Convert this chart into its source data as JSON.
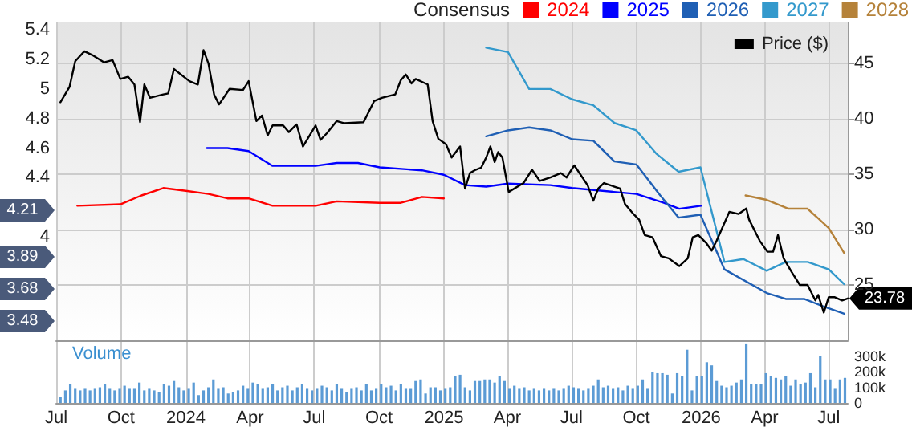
{
  "chart_data": {
    "type": "line",
    "legend_title": "Consensus",
    "legend": "top right",
    "grid": true,
    "marker": "none",
    "line_style": "solid",
    "xlim": [
      "2023-07-01",
      "2026-07-28"
    ],
    "xticks": [
      {
        "value": "2023-07-01",
        "label": "Jul"
      },
      {
        "value": "2023-10-01",
        "label": "Oct"
      },
      {
        "value": "2024-01-01",
        "label": "2024"
      },
      {
        "value": "2024-04-01",
        "label": "Apr"
      },
      {
        "value": "2024-07-01",
        "label": "Jul"
      },
      {
        "value": "2024-10-01",
        "label": "Oct"
      },
      {
        "value": "2025-01-01",
        "label": "2025"
      },
      {
        "value": "2025-04-01",
        "label": "Apr"
      },
      {
        "value": "2025-07-01",
        "label": "Jul"
      },
      {
        "value": "2025-10-01",
        "label": "Oct"
      },
      {
        "value": "2026-01-01",
        "label": "2026"
      },
      {
        "value": "2026-04-01",
        "label": "Apr"
      },
      {
        "value": "2026-07-01",
        "label": "Jul"
      }
    ],
    "ylim": [
      3.3,
      5.45
    ],
    "yticks": [
      4,
      4.4,
      4.6,
      4.8,
      5,
      5.2,
      5.4
    ],
    "y2lim": [
      20,
      48.7
    ],
    "y2ticks": [
      25,
      30,
      35,
      40,
      45
    ],
    "y3lim": [
      0,
      400000
    ],
    "y3ticks": [
      0,
      {
        "value": 100000,
        "label": "100k"
      },
      {
        "value": 200000,
        "label": "200k"
      },
      {
        "value": 300000,
        "label": "300k"
      }
    ],
    "annotations": [
      "Volume",
      "4.21",
      "3.89",
      "3.68",
      "3.48"
    ],
    "series": [
      {
        "name": "2024",
        "color": "#ff0000",
        "x": [
          "2023-07-31",
          "2023-09-30",
          "2023-10-30",
          "2023-11-30",
          "2024-01-03",
          "2024-02-02",
          "2024-02-29",
          "2024-03-30",
          "2024-05-03",
          "2024-07-03",
          "2024-08-02",
          "2024-10-02",
          "2024-11-01",
          "2024-12-01",
          "2025-01-01"
        ],
        "values": [
          4.21,
          4.22,
          4.28,
          4.33,
          4.31,
          4.29,
          4.26,
          4.26,
          4.21,
          4.21,
          4.24,
          4.23,
          4.23,
          4.27,
          4.26
        ]
      },
      {
        "name": "2025",
        "color": "#0000ff",
        "x": [
          "2024-01-31",
          "2024-02-29",
          "2024-03-30",
          "2024-05-03",
          "2024-07-03",
          "2024-08-02",
          "2024-09-01",
          "2024-10-02",
          "2024-12-01",
          "2025-01-01",
          "2025-01-31",
          "2025-03-02",
          "2025-04-02",
          "2025-06-01",
          "2025-07-02",
          "2025-10-01",
          "2025-11-09",
          "2025-12-01",
          "2026-01-01"
        ],
        "values": [
          4.6,
          4.6,
          4.58,
          4.48,
          4.48,
          4.5,
          4.5,
          4.47,
          4.45,
          4.42,
          4.35,
          4.34,
          4.36,
          4.35,
          4.33,
          4.29,
          4.23,
          4.19,
          4.21
        ]
      },
      {
        "name": "2026",
        "color": "#1f5fb4",
        "x": [
          "2025-03-02",
          "2025-04-02",
          "2025-05-02",
          "2025-06-01",
          "2025-07-02",
          "2025-08-01",
          "2025-08-31",
          "2025-10-01",
          "2025-11-04",
          "2025-11-30",
          "2025-12-31",
          "2026-02-03",
          "2026-04-04",
          "2026-05-01",
          "2026-05-27",
          "2026-06-23",
          "2026-07-23"
        ],
        "values": [
          4.68,
          4.72,
          4.74,
          4.72,
          4.66,
          4.65,
          4.51,
          4.49,
          4.28,
          4.13,
          4.15,
          3.78,
          3.62,
          3.58,
          3.58,
          3.53,
          3.48
        ]
      },
      {
        "name": "2027",
        "color": "#3399cc",
        "x": [
          "2025-03-02",
          "2025-04-02",
          "2025-05-02",
          "2025-06-01",
          "2025-07-02",
          "2025-08-01",
          "2025-08-31",
          "2025-10-01",
          "2025-10-30",
          "2025-11-30",
          "2025-12-31",
          "2026-02-03",
          "2026-03-02",
          "2026-04-04",
          "2026-05-01",
          "2026-06-01",
          "2026-07-01",
          "2026-07-23"
        ],
        "values": [
          5.28,
          5.25,
          5.0,
          5.0,
          4.93,
          4.89,
          4.77,
          4.72,
          4.56,
          4.44,
          4.47,
          3.83,
          3.85,
          3.77,
          3.83,
          3.83,
          3.78,
          3.68
        ]
      },
      {
        "name": "2028",
        "color": "#b5823a",
        "x": [
          "2026-03-05",
          "2026-04-04",
          "2026-05-05",
          "2026-06-01",
          "2026-07-01",
          "2026-07-23"
        ],
        "values": [
          4.28,
          4.25,
          4.19,
          4.19,
          4.06,
          3.89
        ]
      },
      {
        "name": "Price ($)",
        "color": "#000000",
        "axis": "y2",
        "x": [
          "2023-07-07",
          "2023-07-20",
          "2023-07-28",
          "2023-08-10",
          "2023-08-23",
          "2023-09-07",
          "2023-09-19",
          "2023-09-30",
          "2023-10-11",
          "2023-10-20",
          "2023-10-28",
          "2023-11-03",
          "2023-11-11",
          "2023-11-30",
          "2023-12-07",
          "2023-12-15",
          "2024-01-06",
          "2024-01-18",
          "2024-01-26",
          "2024-02-02",
          "2024-02-10",
          "2024-02-17",
          "2024-03-03",
          "2024-03-22",
          "2024-03-30",
          "2024-04-10",
          "2024-04-18",
          "2024-04-26",
          "2024-05-03",
          "2024-05-18",
          "2024-05-26",
          "2024-06-06",
          "2024-06-15",
          "2024-07-03",
          "2024-07-10",
          "2024-07-19",
          "2024-08-02",
          "2024-08-13",
          "2024-09-09",
          "2024-09-24",
          "2024-10-05",
          "2024-10-24",
          "2024-11-01",
          "2024-11-08",
          "2024-11-16",
          "2024-11-22",
          "2024-12-09",
          "2024-12-16",
          "2024-12-24",
          "2025-01-04",
          "2025-01-12",
          "2025-01-24",
          "2025-01-31",
          "2025-02-07",
          "2025-02-15",
          "2025-02-23",
          "2025-03-02",
          "2025-03-08",
          "2025-03-14",
          "2025-03-19",
          "2025-03-25",
          "2025-04-03",
          "2025-04-24",
          "2025-05-06",
          "2025-05-17",
          "2025-06-01",
          "2025-06-16",
          "2025-06-24",
          "2025-07-05",
          "2025-07-24",
          "2025-08-01",
          "2025-08-08",
          "2025-08-16",
          "2025-09-08",
          "2025-09-15",
          "2025-09-27",
          "2025-10-05",
          "2025-10-13",
          "2025-10-24",
          "2025-11-05",
          "2025-11-16",
          "2025-12-01",
          "2025-12-13",
          "2025-12-20",
          "2025-12-28",
          "2026-01-08",
          "2026-01-16",
          "2026-01-23",
          "2026-02-10",
          "2026-02-23",
          "2026-03-06",
          "2026-03-10",
          "2026-03-25",
          "2026-04-05",
          "2026-04-13",
          "2026-04-20",
          "2026-04-28",
          "2026-05-09",
          "2026-05-21",
          "2026-06-01",
          "2026-06-12",
          "2026-06-16",
          "2026-06-24",
          "2026-07-01",
          "2026-07-09",
          "2026-07-20",
          "2026-07-28"
        ],
        "values": [
          41.5,
          42.9,
          45.2,
          46.1,
          45.7,
          45.1,
          45.3,
          43.6,
          43.8,
          43.1,
          39.7,
          43.1,
          41.9,
          42.2,
          42.3,
          44.5,
          43.4,
          43.1,
          46.2,
          45.0,
          42.2,
          41.3,
          42.7,
          42.6,
          43.4,
          39.8,
          40.3,
          38.5,
          39.4,
          39.4,
          38.8,
          39.5,
          37.5,
          39.4,
          38.1,
          38.7,
          39.8,
          39.6,
          39.7,
          41.6,
          41.9,
          42.2,
          43.5,
          44.0,
          43.2,
          43.6,
          43.1,
          39.8,
          38.2,
          37.7,
          36.5,
          37.5,
          33.7,
          35.1,
          35.4,
          35.6,
          36.5,
          37.5,
          36.1,
          37.0,
          36.5,
          33.4,
          34.2,
          35.4,
          34.4,
          34.7,
          35.1,
          34.7,
          35.8,
          34.0,
          32.6,
          33.7,
          34.2,
          33.7,
          32.3,
          31.4,
          30.9,
          29.5,
          29.3,
          27.6,
          27.4,
          26.7,
          27.4,
          29.3,
          29.5,
          28.8,
          28.1,
          29.0,
          31.6,
          31.4,
          31.9,
          30.9,
          29.0,
          28.0,
          28.0,
          29.5,
          27.4,
          26.2,
          25.0,
          25.0,
          23.6,
          24.1,
          22.5,
          23.9,
          23.9,
          23.6,
          23.78
        ],
        "value_labels": [
          null,
          null,
          null,
          null,
          null,
          null,
          null,
          null,
          null,
          null,
          null,
          null,
          null,
          null,
          null,
          null,
          null,
          null,
          null,
          null,
          null,
          null,
          null,
          null,
          null,
          null,
          null,
          null,
          null,
          null,
          null,
          null,
          null,
          null,
          null,
          null,
          null,
          null,
          null,
          null,
          null,
          null,
          null,
          null,
          null,
          null,
          null,
          null,
          null,
          null,
          null,
          null,
          null,
          null,
          null,
          null,
          null,
          null,
          null,
          null,
          null,
          null,
          null,
          null,
          null,
          null,
          null,
          null,
          null,
          null,
          null,
          null,
          null,
          null,
          null,
          null,
          null,
          null,
          null,
          null,
          null,
          null,
          null,
          null,
          null,
          null,
          null,
          null,
          null,
          null,
          null,
          null,
          null,
          null,
          null,
          null,
          null,
          null,
          null,
          null,
          null,
          null,
          null,
          null,
          null,
          null,
          "23.78"
        ]
      },
      {
        "type": "bar",
        "color": "#5b9bd5",
        "axis": "y3",
        "x": [
          "2023-07-07",
          "2023-07-14",
          "2023-07-21",
          "2023-07-28",
          "2023-08-04",
          "2023-08-11",
          "2023-08-18",
          "2023-08-25",
          "2023-09-01",
          "2023-09-08",
          "2023-09-15",
          "2023-09-22",
          "2023-09-29",
          "2023-10-06",
          "2023-10-13",
          "2023-10-20",
          "2023-10-27",
          "2023-11-03",
          "2023-11-10",
          "2023-11-17",
          "2023-11-24",
          "2023-12-01",
          "2023-12-08",
          "2023-12-15",
          "2023-12-22",
          "2023-12-29",
          "2024-01-05",
          "2024-01-12",
          "2024-01-19",
          "2024-01-26",
          "2024-02-02",
          "2024-02-09",
          "2024-02-16",
          "2024-02-23",
          "2024-03-01",
          "2024-03-08",
          "2024-03-15",
          "2024-03-22",
          "2024-03-29",
          "2024-04-05",
          "2024-04-12",
          "2024-04-19",
          "2024-04-26",
          "2024-05-03",
          "2024-05-10",
          "2024-05-17",
          "2024-05-24",
          "2024-05-31",
          "2024-06-07",
          "2024-06-14",
          "2024-06-21",
          "2024-06-28",
          "2024-07-05",
          "2024-07-12",
          "2024-07-19",
          "2024-07-26",
          "2024-08-02",
          "2024-08-09",
          "2024-08-16",
          "2024-08-23",
          "2024-08-30",
          "2024-09-06",
          "2024-09-13",
          "2024-09-20",
          "2024-09-27",
          "2024-10-04",
          "2024-10-11",
          "2024-10-18",
          "2024-10-25",
          "2024-11-01",
          "2024-11-08",
          "2024-11-15",
          "2024-11-22",
          "2024-11-29",
          "2024-12-06",
          "2024-12-13",
          "2024-12-20",
          "2024-12-27",
          "2025-01-03",
          "2025-01-10",
          "2025-01-17",
          "2025-01-24",
          "2025-01-31",
          "2025-02-07",
          "2025-02-14",
          "2025-02-21",
          "2025-02-28",
          "2025-03-07",
          "2025-03-14",
          "2025-03-21",
          "2025-03-28",
          "2025-04-04",
          "2025-04-11",
          "2025-04-18",
          "2025-04-25",
          "2025-05-02",
          "2025-05-09",
          "2025-05-16",
          "2025-05-23",
          "2025-05-30",
          "2025-06-06",
          "2025-06-13",
          "2025-06-20",
          "2025-06-27",
          "2025-07-04",
          "2025-07-11",
          "2025-07-18",
          "2025-07-25",
          "2025-08-01",
          "2025-08-08",
          "2025-08-15",
          "2025-08-22",
          "2025-08-29",
          "2025-09-05",
          "2025-09-12",
          "2025-09-19",
          "2025-09-26",
          "2025-10-03",
          "2025-10-10",
          "2025-10-17",
          "2025-10-24",
          "2025-10-31",
          "2025-11-07",
          "2025-11-14",
          "2025-11-21",
          "2025-11-28",
          "2025-12-05",
          "2025-12-12",
          "2025-12-19",
          "2025-12-26",
          "2026-01-02",
          "2026-01-09",
          "2026-01-16",
          "2026-01-23",
          "2026-01-30",
          "2026-02-06",
          "2026-02-13",
          "2026-02-20",
          "2026-02-27",
          "2026-03-06",
          "2026-03-13",
          "2026-03-20",
          "2026-03-27",
          "2026-04-03",
          "2026-04-10",
          "2026-04-17",
          "2026-04-24",
          "2026-05-01",
          "2026-05-08",
          "2026-05-15",
          "2026-05-22",
          "2026-05-29",
          "2026-06-05",
          "2026-06-12",
          "2026-06-19",
          "2026-06-26",
          "2026-07-03",
          "2026-07-10",
          "2026-07-17",
          "2026-07-24"
        ],
        "values": [
          40000,
          80000,
          120000,
          90000,
          80000,
          90000,
          80000,
          90000,
          100000,
          120000,
          90000,
          80000,
          90000,
          110000,
          90000,
          90000,
          130000,
          80000,
          90000,
          80000,
          70000,
          120000,
          110000,
          140000,
          100000,
          80000,
          90000,
          130000,
          50000,
          80000,
          100000,
          150000,
          90000,
          100000,
          60000,
          70000,
          80000,
          110000,
          90000,
          130000,
          120000,
          90000,
          100000,
          120000,
          80000,
          100000,
          110000,
          80000,
          100000,
          120000,
          90000,
          80000,
          90000,
          110000,
          100000,
          80000,
          120000,
          90000,
          70000,
          90000,
          100000,
          80000,
          120000,
          80000,
          90000,
          120000,
          100000,
          110000,
          80000,
          120000,
          90000,
          90000,
          140000,
          150000,
          60000,
          100000,
          100000,
          80000,
          90000,
          100000,
          170000,
          180000,
          100000,
          80000,
          140000,
          140000,
          150000,
          150000,
          130000,
          170000,
          140000,
          90000,
          110000,
          90000,
          100000,
          80000,
          90000,
          80000,
          90000,
          80000,
          90000,
          80000,
          90000,
          110000,
          100000,
          90000,
          80000,
          90000,
          110000,
          150000,
          100000,
          110000,
          90000,
          100000,
          80000,
          110000,
          90000,
          110000,
          150000,
          90000,
          200000,
          190000,
          190000,
          180000,
          60000,
          190000,
          170000,
          340000,
          80000,
          170000,
          170000,
          260000,
          240000,
          140000,
          110000,
          100000,
          110000,
          130000,
          150000,
          380000,
          120000,
          120000,
          120000,
          190000,
          170000,
          160000,
          150000,
          170000,
          110000,
          150000,
          120000,
          130000,
          190000,
          100000,
          300000,
          150000,
          150000,
          90000,
          150000,
          160000
        ]
      }
    ]
  }
}
